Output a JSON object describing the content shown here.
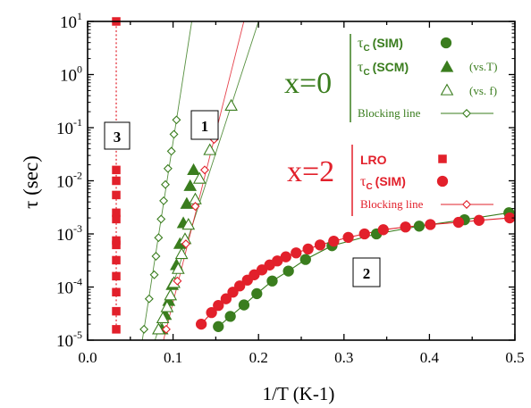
{
  "chart_data": {
    "type": "scatter",
    "xlabel": "1/T (K-1)",
    "ylabel": "τ (sec)",
    "xlim": [
      0.0,
      0.5
    ],
    "ylim": [
      1e-05,
      10
    ],
    "yscale": "log",
    "grid": false,
    "x_ticks": [
      "0.0",
      "0.1",
      "0.2",
      "0.3",
      "0.4",
      "0.5"
    ],
    "y_ticks": [
      {
        "base": "10",
        "exp": "-5"
      },
      {
        "base": "10",
        "exp": "-4"
      },
      {
        "base": "10",
        "exp": "-3"
      },
      {
        "base": "10",
        "exp": "-2"
      },
      {
        "base": "10",
        "exp": "-1"
      },
      {
        "base": "10",
        "exp": "0"
      },
      {
        "base": "10",
        "exp": "1"
      }
    ],
    "colors": {
      "green": "#3a7d1e",
      "red": "#e2202b"
    },
    "group_titles": {
      "x0": "x=0",
      "x2": "x=2"
    },
    "legend": {
      "x0": {
        "sim": {
          "sym": "τ",
          "sub": "C",
          "label": "(SIM)"
        },
        "scm": {
          "sym": "τ",
          "sub": "C",
          "label": "(SCM)",
          "note": "(vs.T)"
        },
        "scm_f": {
          "note": "(vs. f)"
        },
        "blocking": "Blocking line"
      },
      "x2": {
        "lro": "LRO",
        "sim": {
          "sym": "τ",
          "sub": "C",
          "label": "(SIM)"
        },
        "blocking": "Blocking line"
      }
    },
    "annotations": [
      "1",
      "2",
      "3"
    ],
    "series": [
      {
        "name": "x=0 τC (SCM) vs.T",
        "marker": "triangle-filled",
        "color": "#3a7d1e",
        "x": [
          0.087,
          0.091,
          0.095,
          0.099,
          0.104,
          0.108,
          0.112,
          0.116,
          0.12,
          0.124
        ],
        "y": [
          1.6e-05,
          3e-05,
          5.5e-05,
          0.00011,
          0.00026,
          0.00065,
          0.0016,
          0.0037,
          0.008,
          0.016
        ]
      },
      {
        "name": "x=0 τC (SCM) vs. f",
        "marker": "triangle-open",
        "color": "#3a7d1e",
        "x": [
          0.083,
          0.088,
          0.093,
          0.097,
          0.101,
          0.106,
          0.11,
          0.114,
          0.118,
          0.126,
          0.131,
          0.143,
          0.168
        ],
        "y": [
          1.6e-05,
          2.6e-05,
          4.2e-05,
          7e-05,
          0.00012,
          0.00022,
          0.00042,
          0.0008,
          0.0015,
          0.0045,
          0.011,
          0.038,
          0.26
        ]
      },
      {
        "name": "x=0 Blocking line",
        "marker": "diamond-open",
        "color": "#3a7d1e",
        "x": [
          0.066,
          0.072,
          0.078,
          0.08,
          0.083,
          0.086,
          0.089,
          0.091,
          0.094,
          0.098,
          0.101,
          0.104
        ],
        "y": [
          1.6e-05,
          6e-05,
          0.00017,
          0.00038,
          0.00085,
          0.0019,
          0.0042,
          0.0085,
          0.017,
          0.036,
          0.075,
          0.14
        ]
      },
      {
        "name": "x=0 τC (SIM)",
        "marker": "circle-filled",
        "color": "#3a7d1e",
        "x": [
          0.153,
          0.167,
          0.183,
          0.198,
          0.216,
          0.235,
          0.255,
          0.286,
          0.338,
          0.388,
          0.441,
          0.493
        ],
        "y": [
          1.8e-05,
          2.8e-05,
          4.6e-05,
          7.5e-05,
          0.00013,
          0.0002,
          0.00033,
          0.0006,
          0.001,
          0.0014,
          0.00185,
          0.0025
        ]
      },
      {
        "name": "x=2 τC (SIM)",
        "marker": "circle-filled",
        "color": "#e2202b",
        "x": [
          0.133,
          0.145,
          0.153,
          0.162,
          0.17,
          0.178,
          0.187,
          0.195,
          0.204,
          0.213,
          0.222,
          0.232,
          0.244,
          0.258,
          0.272,
          0.288,
          0.305,
          0.324,
          0.346,
          0.372,
          0.401,
          0.434,
          0.458,
          0.494
        ],
        "y": [
          2e-05,
          3.3e-05,
          4.5e-05,
          6e-05,
          8e-05,
          0.000105,
          0.000135,
          0.00017,
          0.00021,
          0.00026,
          0.00031,
          0.00037,
          0.00044,
          0.00052,
          0.00062,
          0.00073,
          0.00086,
          0.001,
          0.0012,
          0.00135,
          0.0015,
          0.00165,
          0.0018,
          0.002
        ]
      },
      {
        "name": "x=2 Blocking line",
        "marker": "diamond-open",
        "color": "#e2202b",
        "x": [
          0.092,
          0.105,
          0.115,
          0.126,
          0.137,
          0.148
        ],
        "y": [
          1.6e-05,
          0.00013,
          0.00065,
          0.0033,
          0.016,
          0.06
        ]
      },
      {
        "name": "x=2 LRO",
        "marker": "square-filled",
        "color": "#e2202b",
        "x": [
          0.0335,
          0.0335,
          0.0335,
          0.0335,
          0.0335,
          0.0335,
          0.0335,
          0.0335,
          0.0335,
          0.0335,
          0.0335,
          0.0335,
          0.0335
        ],
        "y": [
          10,
          0.016,
          0.0054,
          0.0019,
          0.00062,
          0.00032,
          0.00016,
          8e-05,
          3.5e-05,
          1.6e-05,
          0.01,
          0.00075,
          0.0025
        ]
      }
    ]
  }
}
